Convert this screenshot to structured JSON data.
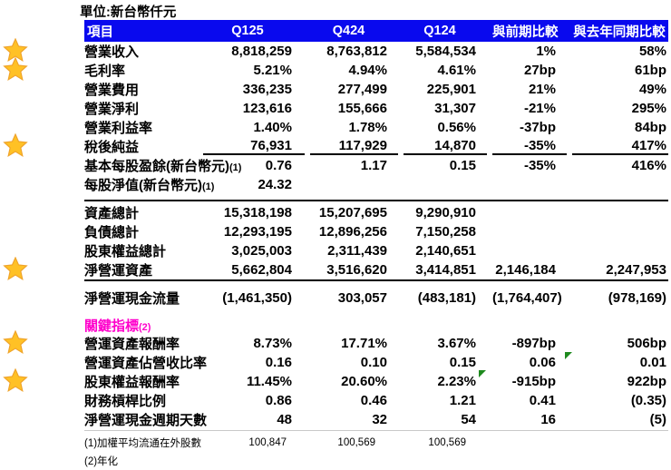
{
  "title": "單位:新台幣仟元",
  "colors": {
    "header_bg": "#0909ee",
    "header_text": "#ffffff",
    "magenta": "#ff00cc",
    "star": "#ffc125",
    "star_stroke": "#efa32a",
    "flag": "#1e8a1e"
  },
  "table": {
    "headers": [
      "項目",
      "Q125",
      "Q424",
      "Q124",
      "與前期比較",
      "與去年同期比較"
    ],
    "sections": [
      {
        "name": "income_statement",
        "rows": [
          {
            "label": "營業收入",
            "star": true,
            "values": [
              "8,818,259",
              "8,763,812",
              "5,584,534",
              "1%",
              "58%"
            ]
          },
          {
            "label": "毛利率",
            "star": true,
            "values": [
              "5.21%",
              "4.94%",
              "4.61%",
              "27bp",
              "61bp"
            ]
          },
          {
            "label": "營業費用",
            "values": [
              "336,235",
              "277,499",
              "225,901",
              "21%",
              "49%"
            ]
          },
          {
            "label": "營業淨利",
            "values": [
              "123,616",
              "155,666",
              "31,307",
              "-21%",
              "295%"
            ]
          },
          {
            "label": "營業利益率",
            "values": [
              "1.40%",
              "1.78%",
              "0.56%",
              "-37bp",
              "84bp"
            ]
          },
          {
            "label": "稅後純益",
            "star": true,
            "underline": true,
            "values": [
              "76,931",
              "117,929",
              "14,870",
              "-35%",
              "417%"
            ]
          },
          {
            "label": "基本每股盈餘(新台幣元)",
            "suffix": "(1)",
            "values": [
              "0.76",
              "1.17",
              "0.15",
              "-35%",
              "416%"
            ]
          },
          {
            "label": "每股淨值(新台幣元)",
            "suffix": "(1)",
            "values": [
              "24.32",
              "",
              "",
              "",
              ""
            ]
          }
        ]
      },
      {
        "name": "balance_sheet",
        "rows": [
          {
            "label": "資產總計",
            "values": [
              "15,318,198",
              "15,207,695",
              "9,290,910",
              "",
              ""
            ]
          },
          {
            "label": "負債總計",
            "values": [
              "12,293,195",
              "12,896,256",
              "7,150,258",
              "",
              ""
            ]
          },
          {
            "label": "股東權益總計",
            "values": [
              "3,025,003",
              "2,311,439",
              "2,140,651",
              "",
              ""
            ]
          },
          {
            "label": "淨營運資產",
            "star": true,
            "values": [
              "5,662,804",
              "3,516,620",
              "3,414,851",
              "2,146,184",
              "2,247,953"
            ]
          }
        ]
      },
      {
        "name": "cash_flow",
        "rows": [
          {
            "label": "淨營運現金流量",
            "values": [
              "(1,461,350)",
              "303,057",
              "(483,181)",
              "(1,764,407)",
              "(978,169)"
            ]
          }
        ]
      },
      {
        "name": "key_metrics",
        "rows": [
          {
            "label": "關鍵指標",
            "suffix": "(2)",
            "highlight": true
          },
          {
            "label": "營運資產報酬率",
            "star": true,
            "values": [
              "8.73%",
              "17.71%",
              "3.67%",
              "-897bp",
              "506bp"
            ]
          },
          {
            "label": "營運資產佔營收比率",
            "values": [
              "0.16",
              "0.10",
              "0.15",
              "0.06",
              "0.01"
            ],
            "flag_col": 3
          },
          {
            "label": "股東權益報酬率",
            "star": true,
            "values": [
              "11.45%",
              "20.60%",
              "2.23%",
              "-915bp",
              "922bp"
            ],
            "flag_col": 2
          },
          {
            "label": "財務槓桿比例",
            "values": [
              "0.86",
              "0.46",
              "1.21",
              "0.41",
              "(0.35)"
            ]
          },
          {
            "label": "淨營運現金週期天數",
            "values": [
              "48",
              "32",
              "54",
              "16",
              "(5)"
            ]
          }
        ]
      },
      {
        "name": "footnotes",
        "rows": [
          {
            "label": "(1)加權平均流通在外股數",
            "small": true,
            "values": [
              "100,847",
              "100,569",
              "100,569",
              "",
              ""
            ]
          },
          {
            "label": "(2)年化",
            "small": true
          }
        ]
      }
    ]
  }
}
